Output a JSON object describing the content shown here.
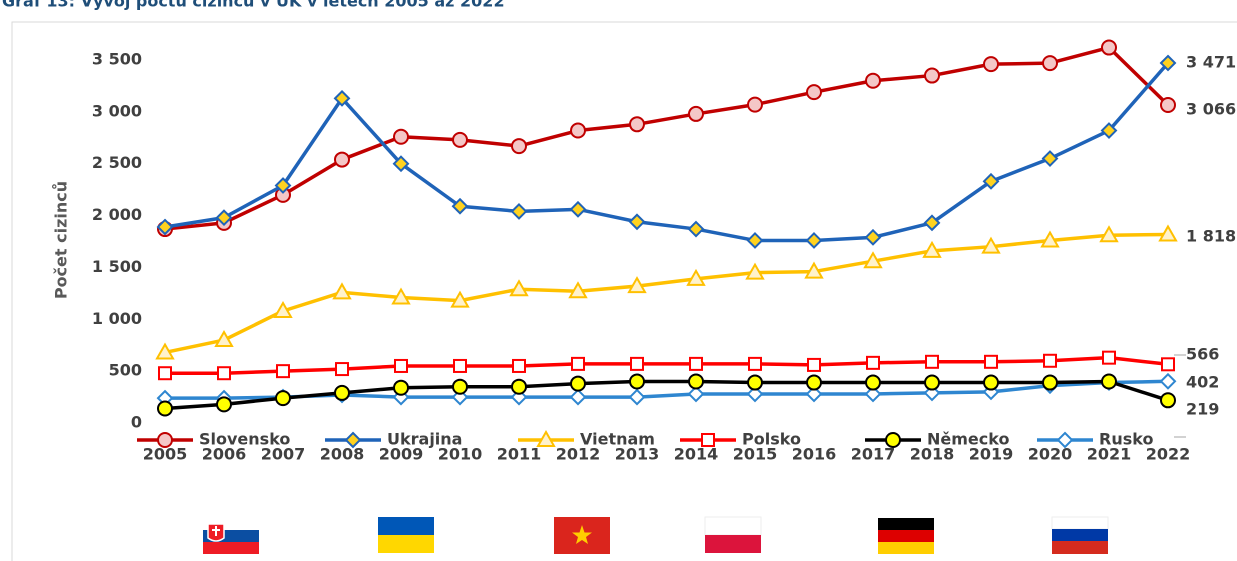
{
  "chart_data": {
    "type": "line",
    "title": "Graf 13: Vývoj počtu cizinců v ÚK v letech 2005 až 2022",
    "y_label": "Počet cizinců",
    "categories": [
      "2005",
      "2006",
      "2007",
      "2008",
      "2009",
      "2010",
      "2011",
      "2012",
      "2013",
      "2014",
      "2015",
      "2016",
      "2017",
      "2018",
      "2019",
      "2020",
      "2021",
      "2022"
    ],
    "ylim": [
      0,
      3500
    ],
    "yticks": [
      0,
      500,
      {
        "value": 1000,
        "label": "1 000"
      },
      {
        "value": 1500,
        "label": "1 500"
      },
      {
        "value": 2000,
        "label": "2 000"
      },
      {
        "value": 2500,
        "label": "2 500"
      },
      {
        "value": 3000,
        "label": "3 000"
      },
      {
        "value": 3500,
        "label": "3 500"
      }
    ],
    "grid": false,
    "legend": "bottom",
    "series": [
      {
        "name": "Slovensko",
        "color": "#c00000",
        "marker": "circle",
        "marker_fill": "#f4c7c7",
        "values": [
          1870,
          1930,
          2200,
          2540,
          2760,
          2730,
          2670,
          2820,
          2880,
          2980,
          3070,
          3190,
          3300,
          3350,
          3460,
          3470,
          3620,
          3066
        ],
        "value_labels": [
          null,
          null,
          null,
          null,
          null,
          null,
          null,
          null,
          null,
          null,
          null,
          null,
          null,
          null,
          null,
          null,
          null,
          "3 066"
        ]
      },
      {
        "name": "Ukrajina",
        "color": "#1f63b8",
        "marker": "diamond",
        "marker_fill": "#ffd21f",
        "values": [
          1890,
          1980,
          2290,
          3130,
          2500,
          2090,
          2040,
          2060,
          1940,
          1870,
          1760,
          1760,
          1790,
          1930,
          2330,
          2550,
          2820,
          3471
        ],
        "value_labels": [
          null,
          null,
          null,
          null,
          null,
          null,
          null,
          null,
          null,
          null,
          null,
          null,
          null,
          null,
          null,
          null,
          null,
          "3 471"
        ]
      },
      {
        "name": "Vietnam",
        "color": "#ffc000",
        "marker": "triangle",
        "marker_fill": "#fff2cc",
        "values": [
          680,
          800,
          1080,
          1260,
          1210,
          1180,
          1290,
          1270,
          1320,
          1390,
          1450,
          1460,
          1560,
          1660,
          1700,
          1760,
          1810,
          1818
        ],
        "value_labels": [
          null,
          null,
          null,
          null,
          null,
          null,
          null,
          null,
          null,
          null,
          null,
          null,
          null,
          null,
          null,
          null,
          null,
          "1 818"
        ]
      },
      {
        "name": "Polsko",
        "color": "#ff0000",
        "marker": "square",
        "marker_fill": "#ffffff",
        "values": [
          480,
          480,
          500,
          520,
          550,
          550,
          550,
          570,
          570,
          570,
          570,
          560,
          580,
          590,
          590,
          600,
          630,
          566
        ]
      },
      {
        "name": "Německo",
        "color": "#000000",
        "marker": "circle",
        "marker_fill": "#ffff00",
        "values": [
          140,
          180,
          240,
          290,
          340,
          350,
          350,
          380,
          400,
          400,
          390,
          390,
          390,
          390,
          390,
          390,
          400,
          219
        ]
      },
      {
        "name": "Rusko",
        "color": "#2e86d0",
        "marker": "diamond",
        "marker_fill": "#ffffff",
        "values": [
          240,
          240,
          250,
          270,
          250,
          250,
          250,
          250,
          250,
          280,
          280,
          280,
          280,
          290,
          300,
          360,
          390,
          402
        ]
      }
    ]
  }
}
